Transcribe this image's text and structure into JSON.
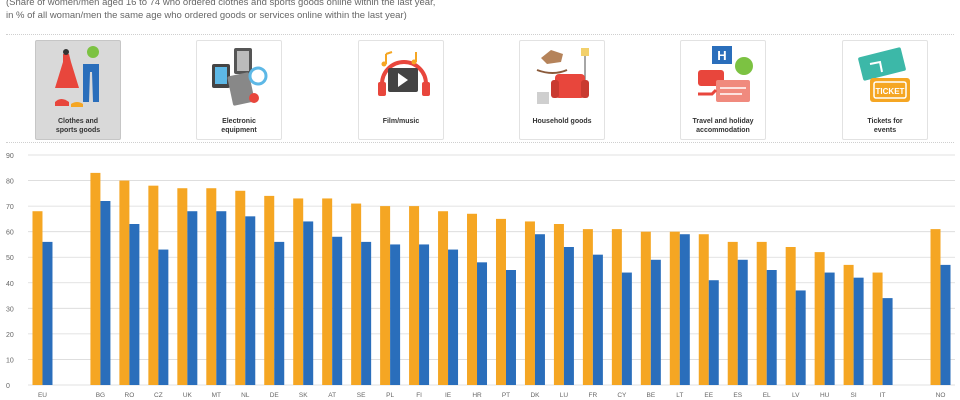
{
  "subtitle": {
    "line1": "(Share of women/men aged 16 to 74 who ordered clothes and sports goods online within the last year,",
    "line2": "in % of all woman/men the same age who ordered goods or services online within the last year)"
  },
  "categories_nav": [
    {
      "label_l1": "Clothes and",
      "label_l2": "sports goods",
      "icon": "clothes-icon",
      "selected": true
    },
    {
      "label_l1": "Electronic",
      "label_l2": "equipment",
      "icon": "electronics-icon",
      "selected": false
    },
    {
      "label_l1": "Film/music",
      "label_l2": "",
      "icon": "film-music-icon",
      "selected": false
    },
    {
      "label_l1": "Household goods",
      "label_l2": "",
      "icon": "household-icon",
      "selected": false
    },
    {
      "label_l1": "Travel and holiday",
      "label_l2": "accommodation",
      "icon": "travel-icon",
      "selected": false
    },
    {
      "label_l1": "Tickets for",
      "label_l2": "events",
      "icon": "tickets-icon",
      "selected": false
    }
  ],
  "colors": {
    "women": "#f5a623",
    "men": "#2a6ebb",
    "grid": "#d9d9d9",
    "axis_text": "#666666"
  },
  "chart_data": {
    "type": "bar",
    "ylim": [
      0,
      90
    ],
    "yticks": [
      0,
      10,
      20,
      30,
      40,
      50,
      60,
      70,
      80,
      90
    ],
    "grid": true,
    "categories": [
      "EU",
      "BG",
      "RO",
      "CZ",
      "UK",
      "MT",
      "NL",
      "DE",
      "SK",
      "AT",
      "SE",
      "PL",
      "FI",
      "IE",
      "HR",
      "PT",
      "DK",
      "LU",
      "FR",
      "CY",
      "BE",
      "LT",
      "EE",
      "ES",
      "EL",
      "LV",
      "HU",
      "SI",
      "IT",
      "NO"
    ],
    "series": [
      {
        "values": [
          68,
          83,
          80,
          78,
          77,
          77,
          76,
          74,
          73,
          73,
          71,
          70,
          70,
          68,
          67,
          65,
          64,
          63,
          61,
          61,
          60,
          60,
          59,
          56,
          56,
          54,
          52,
          47,
          44,
          61
        ]
      },
      {
        "values": [
          56,
          72,
          63,
          53,
          68,
          68,
          66,
          56,
          64,
          58,
          56,
          55,
          55,
          53,
          48,
          45,
          59,
          54,
          51,
          44,
          49,
          59,
          41,
          49,
          45,
          37,
          44,
          42,
          34,
          47
        ]
      }
    ]
  }
}
